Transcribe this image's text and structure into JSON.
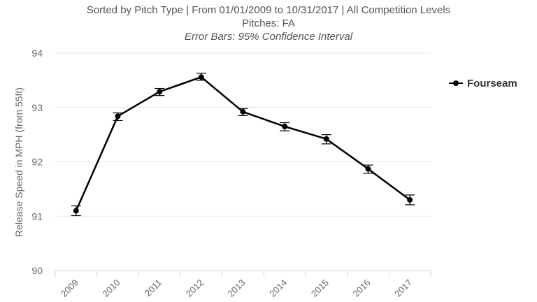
{
  "chart_data": {
    "type": "line",
    "title": "",
    "subtitle_lines": [
      "Sorted by Pitch Type | From 01/01/2009 to 10/31/2017 | All Competition Levels",
      "Pitches: FA"
    ],
    "note": "Error Bars: 95% Confidence Interval",
    "xlabel": "",
    "ylabel": "Release Speed in MPH (from 55ft)",
    "ylim": [
      90,
      94
    ],
    "yticks": [
      "90",
      "91",
      "92",
      "93",
      "94"
    ],
    "categories": [
      "2009",
      "2010",
      "2011",
      "2012",
      "2013",
      "2014",
      "2015",
      "2016",
      "2017"
    ],
    "grid": true,
    "legend_position": "right",
    "series": [
      {
        "name": "Fourseam",
        "color": "#000000",
        "values": [
          91.1,
          92.84,
          93.29,
          93.56,
          92.92,
          92.65,
          92.42,
          91.87,
          91.3
        ],
        "ci_low": [
          91.01,
          92.76,
          93.22,
          93.5,
          92.85,
          92.57,
          92.33,
          91.79,
          91.21
        ],
        "ci_high": [
          91.19,
          92.9,
          93.35,
          93.63,
          92.98,
          92.72,
          92.5,
          91.94,
          91.39
        ]
      }
    ]
  }
}
